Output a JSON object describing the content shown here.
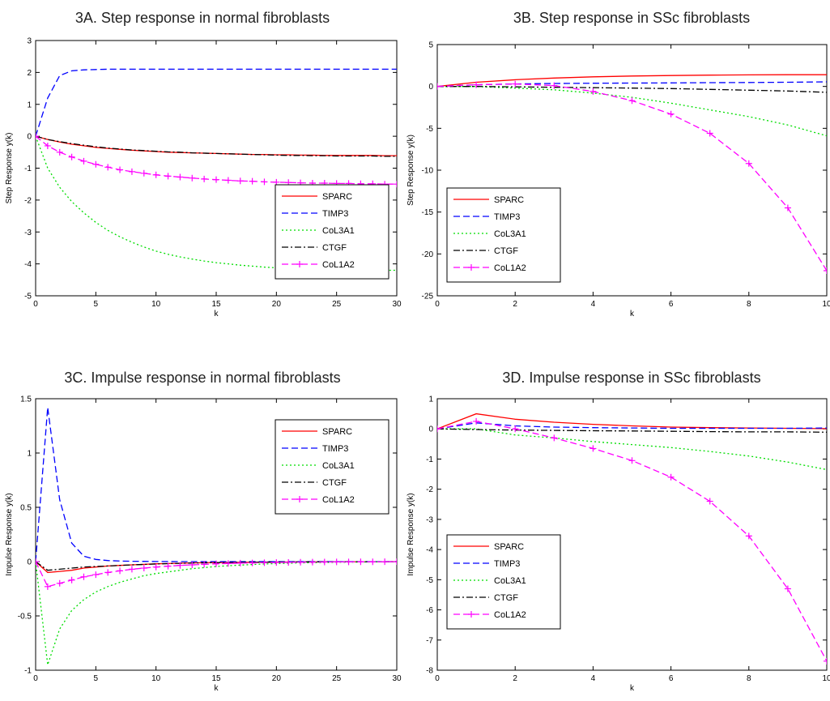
{
  "chart_data": [
    {
      "type": "line",
      "title": "3A. Step response in normal fibroblasts",
      "xlabel": "k",
      "ylabel": "Step Response y(k)",
      "xlim": [
        0,
        30
      ],
      "ylim": [
        -5,
        3
      ],
      "xticks": [
        0,
        5,
        10,
        15,
        20,
        25,
        30
      ],
      "yticks": [
        -5,
        -4,
        -3,
        -2,
        -1,
        0,
        1,
        2,
        3
      ],
      "grid": false,
      "legend_position": "lower-right",
      "x": [
        0,
        1,
        2,
        3,
        4,
        5,
        6,
        7,
        8,
        9,
        10,
        11,
        12,
        13,
        14,
        15,
        16,
        17,
        18,
        19,
        20,
        21,
        22,
        23,
        24,
        25,
        26,
        27,
        28,
        29,
        30
      ],
      "series": [
        {
          "name": "SPARC",
          "color": "#ff0000",
          "dash": "solid",
          "marker": "",
          "values": [
            0,
            -0.1,
            -0.18,
            -0.25,
            -0.3,
            -0.35,
            -0.38,
            -0.41,
            -0.44,
            -0.46,
            -0.48,
            -0.5,
            -0.51,
            -0.52,
            -0.53,
            -0.54,
            -0.55,
            -0.56,
            -0.57,
            -0.57,
            -0.58,
            -0.58,
            -0.59,
            -0.59,
            -0.6,
            -0.6,
            -0.6,
            -0.6,
            -0.6,
            -0.61,
            -0.61
          ]
        },
        {
          "name": "TIMP3",
          "color": "#0000ff",
          "dash": "dashed",
          "marker": "",
          "values": [
            0,
            1.2,
            1.9,
            2.05,
            2.08,
            2.09,
            2.1,
            2.1,
            2.1,
            2.1,
            2.1,
            2.1,
            2.1,
            2.1,
            2.1,
            2.1,
            2.1,
            2.1,
            2.1,
            2.1,
            2.1,
            2.1,
            2.1,
            2.1,
            2.1,
            2.1,
            2.1,
            2.1,
            2.1,
            2.1,
            2.1
          ]
        },
        {
          "name": "CoL3A1",
          "color": "#00dd00",
          "dash": "dotted",
          "marker": "",
          "values": [
            0,
            -1.0,
            -1.6,
            -2.05,
            -2.4,
            -2.7,
            -2.95,
            -3.15,
            -3.32,
            -3.47,
            -3.6,
            -3.7,
            -3.78,
            -3.85,
            -3.91,
            -3.96,
            -4.0,
            -4.04,
            -4.07,
            -4.1,
            -4.12,
            -4.14,
            -4.15,
            -4.16,
            -4.17,
            -4.18,
            -4.18,
            -4.19,
            -4.19,
            -4.2,
            -4.2
          ]
        },
        {
          "name": "CTGF",
          "color": "#000000",
          "dash": "dashdot",
          "marker": "",
          "values": [
            0,
            -0.1,
            -0.17,
            -0.23,
            -0.28,
            -0.33,
            -0.37,
            -0.4,
            -0.43,
            -0.45,
            -0.47,
            -0.49,
            -0.5,
            -0.52,
            -0.53,
            -0.54,
            -0.55,
            -0.56,
            -0.57,
            -0.58,
            -0.59,
            -0.6,
            -0.6,
            -0.61,
            -0.61,
            -0.62,
            -0.62,
            -0.62,
            -0.62,
            -0.63,
            -0.63
          ]
        },
        {
          "name": "CoL1A2",
          "color": "#ff00ff",
          "dash": "dashed",
          "marker": "plus",
          "values": [
            0,
            -0.3,
            -0.5,
            -0.65,
            -0.78,
            -0.88,
            -0.97,
            -1.05,
            -1.11,
            -1.16,
            -1.21,
            -1.25,
            -1.28,
            -1.31,
            -1.34,
            -1.36,
            -1.38,
            -1.4,
            -1.41,
            -1.43,
            -1.44,
            -1.45,
            -1.46,
            -1.47,
            -1.47,
            -1.48,
            -1.48,
            -1.49,
            -1.49,
            -1.5,
            -1.5
          ]
        }
      ]
    },
    {
      "type": "line",
      "title": "3B. Step response in SSc fibroblasts",
      "xlabel": "k",
      "ylabel": "Step Response y(k)",
      "xlim": [
        0,
        10
      ],
      "ylim": [
        -25,
        5
      ],
      "xticks": [
        0,
        2,
        4,
        6,
        8,
        10
      ],
      "yticks": [
        -25,
        -20,
        -15,
        -10,
        -5,
        0,
        5
      ],
      "grid": false,
      "legend_position": "lower-left",
      "x": [
        0,
        1,
        2,
        3,
        4,
        5,
        6,
        7,
        8,
        9,
        10
      ],
      "series": [
        {
          "name": "SPARC",
          "color": "#ff0000",
          "dash": "solid",
          "marker": "",
          "values": [
            0,
            0.5,
            0.8,
            1.0,
            1.15,
            1.25,
            1.3,
            1.35,
            1.38,
            1.4,
            1.4
          ]
        },
        {
          "name": "TIMP3",
          "color": "#0000ff",
          "dash": "dashed",
          "marker": "",
          "values": [
            0,
            0.2,
            0.3,
            0.35,
            0.38,
            0.4,
            0.42,
            0.45,
            0.47,
            0.5,
            0.55
          ]
        },
        {
          "name": "CoL3A1",
          "color": "#00dd00",
          "dash": "dotted",
          "marker": "",
          "values": [
            0,
            0,
            -0.2,
            -0.4,
            -0.8,
            -1.3,
            -2.0,
            -2.8,
            -3.6,
            -4.6,
            -5.9
          ]
        },
        {
          "name": "CTGF",
          "color": "#000000",
          "dash": "dashdot",
          "marker": "",
          "values": [
            0,
            0,
            -0.05,
            -0.1,
            -0.15,
            -0.2,
            -0.25,
            -0.35,
            -0.45,
            -0.55,
            -0.7
          ]
        },
        {
          "name": "CoL1A2",
          "color": "#ff00ff",
          "dash": "dashed",
          "marker": "plus",
          "values": [
            0,
            0.2,
            0.3,
            0.1,
            -0.6,
            -1.7,
            -3.3,
            -5.6,
            -9.2,
            -14.5,
            -22.0
          ]
        }
      ]
    },
    {
      "type": "line",
      "title": "3C. Impulse response in normal fibroblasts",
      "xlabel": "k",
      "ylabel": "Impulse Response y(k)",
      "xlim": [
        0,
        30
      ],
      "ylim": [
        -1,
        1.5
      ],
      "xticks": [
        0,
        5,
        10,
        15,
        20,
        25,
        30
      ],
      "yticks": [
        -1,
        -0.5,
        0,
        0.5,
        1,
        1.5
      ],
      "grid": false,
      "legend_position": "upper-right",
      "x": [
        0,
        1,
        2,
        3,
        4,
        5,
        6,
        7,
        8,
        9,
        10,
        11,
        12,
        13,
        14,
        15,
        16,
        17,
        18,
        19,
        20,
        21,
        22,
        23,
        24,
        25,
        26,
        27,
        28,
        29,
        30
      ],
      "series": [
        {
          "name": "SPARC",
          "color": "#ff0000",
          "dash": "solid",
          "marker": "",
          "values": [
            0,
            -0.1,
            -0.09,
            -0.08,
            -0.06,
            -0.05,
            -0.04,
            -0.035,
            -0.03,
            -0.025,
            -0.02,
            -0.018,
            -0.015,
            -0.012,
            -0.01,
            -0.009,
            -0.008,
            -0.007,
            -0.006,
            -0.005,
            -0.004,
            -0.004,
            -0.003,
            -0.003,
            -0.002,
            -0.002,
            -0.002,
            -0.001,
            -0.001,
            -0.001,
            0
          ]
        },
        {
          "name": "TIMP3",
          "color": "#0000ff",
          "dash": "dashed",
          "marker": "",
          "values": [
            0,
            1.42,
            0.57,
            0.17,
            0.05,
            0.02,
            0.01,
            0.005,
            0.003,
            0.002,
            0.001,
            0.001,
            0,
            0,
            0,
            0,
            0,
            0,
            0,
            0,
            0,
            0,
            0,
            0,
            0,
            0,
            0,
            0,
            0,
            0,
            0
          ]
        },
        {
          "name": "CoL3A1",
          "color": "#00dd00",
          "dash": "dotted",
          "marker": "",
          "values": [
            0,
            -0.95,
            -0.62,
            -0.45,
            -0.35,
            -0.28,
            -0.23,
            -0.19,
            -0.16,
            -0.13,
            -0.11,
            -0.095,
            -0.08,
            -0.065,
            -0.055,
            -0.045,
            -0.038,
            -0.032,
            -0.027,
            -0.022,
            -0.018,
            -0.015,
            -0.012,
            -0.01,
            -0.008,
            -0.006,
            -0.005,
            -0.004,
            -0.003,
            -0.002,
            -0.002
          ]
        },
        {
          "name": "CTGF",
          "color": "#000000",
          "dash": "dashdot",
          "marker": "",
          "values": [
            0,
            -0.08,
            -0.07,
            -0.06,
            -0.05,
            -0.045,
            -0.04,
            -0.035,
            -0.03,
            -0.026,
            -0.022,
            -0.019,
            -0.016,
            -0.013,
            -0.011,
            -0.009,
            -0.008,
            -0.007,
            -0.006,
            -0.005,
            -0.004,
            -0.003,
            -0.003,
            -0.002,
            -0.002,
            -0.002,
            -0.001,
            -0.001,
            -0.001,
            -0.001,
            0
          ]
        },
        {
          "name": "CoL1A2",
          "color": "#ff00ff",
          "dash": "dashed",
          "marker": "plus",
          "values": [
            0,
            -0.23,
            -0.2,
            -0.17,
            -0.14,
            -0.12,
            -0.1,
            -0.085,
            -0.07,
            -0.06,
            -0.05,
            -0.042,
            -0.035,
            -0.03,
            -0.025,
            -0.02,
            -0.017,
            -0.014,
            -0.012,
            -0.01,
            -0.008,
            -0.007,
            -0.006,
            -0.005,
            -0.004,
            -0.003,
            -0.003,
            -0.002,
            -0.002,
            -0.001,
            -0.001
          ]
        }
      ]
    },
    {
      "type": "line",
      "title": "3D. Impulse response in SSc fibroblasts",
      "xlabel": "k",
      "ylabel": "Impulse Response y(k)",
      "xlim": [
        0,
        10
      ],
      "ylim": [
        -8,
        1
      ],
      "xticks": [
        0,
        2,
        4,
        6,
        8,
        10
      ],
      "yticks": [
        -8,
        -7,
        -6,
        -5,
        -4,
        -3,
        -2,
        -1,
        0,
        1
      ],
      "grid": false,
      "legend_position": "lower-left",
      "x": [
        0,
        1,
        2,
        3,
        4,
        5,
        6,
        7,
        8,
        9,
        10
      ],
      "series": [
        {
          "name": "SPARC",
          "color": "#ff0000",
          "dash": "solid",
          "marker": "",
          "values": [
            0,
            0.5,
            0.32,
            0.22,
            0.15,
            0.1,
            0.06,
            0.04,
            0.03,
            0.02,
            0.01
          ]
        },
        {
          "name": "TIMP3",
          "color": "#0000ff",
          "dash": "dashed",
          "marker": "",
          "values": [
            0,
            0.2,
            0.1,
            0.06,
            0.04,
            0.03,
            0.02,
            0.02,
            0.02,
            0.02,
            0.03
          ]
        },
        {
          "name": "CoL3A1",
          "color": "#00dd00",
          "dash": "dotted",
          "marker": "",
          "values": [
            0,
            0,
            -0.2,
            -0.3,
            -0.42,
            -0.52,
            -0.62,
            -0.75,
            -0.9,
            -1.1,
            -1.35
          ]
        },
        {
          "name": "CTGF",
          "color": "#000000",
          "dash": "dashdot",
          "marker": "",
          "values": [
            0,
            -0.02,
            -0.04,
            -0.05,
            -0.06,
            -0.07,
            -0.08,
            -0.09,
            -0.1,
            -0.1,
            -0.11
          ]
        },
        {
          "name": "CoL1A2",
          "color": "#ff00ff",
          "dash": "dashed",
          "marker": "plus",
          "values": [
            0,
            0.25,
            0,
            -0.3,
            -0.65,
            -1.05,
            -1.6,
            -2.4,
            -3.55,
            -5.3,
            -7.7
          ]
        }
      ]
    }
  ]
}
